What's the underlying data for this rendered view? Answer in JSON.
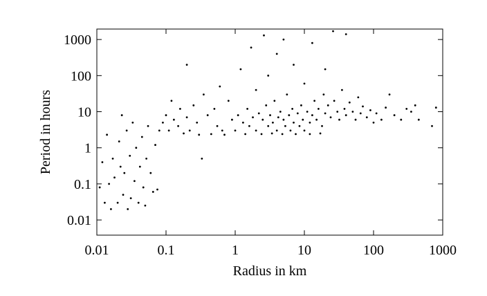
{
  "chart_data": {
    "type": "scatter",
    "xlabel": "Radius in km",
    "ylabel": "Period in hours",
    "log_x": true,
    "log_y": true,
    "color": "#000000",
    "xlim": [
      0.01,
      1000
    ],
    "ylim": [
      0.0038,
      1950
    ],
    "xticks": [
      0.01,
      0.1,
      1,
      10,
      100,
      1000
    ],
    "yticks": [
      0.01,
      0.1,
      1,
      10,
      100,
      1000
    ],
    "x": [
      0.011,
      0.012,
      0.013,
      0.014,
      0.015,
      0.016,
      0.017,
      0.018,
      0.02,
      0.021,
      0.022,
      0.023,
      0.024,
      0.025,
      0.027,
      0.028,
      0.03,
      0.031,
      0.033,
      0.035,
      0.037,
      0.04,
      0.042,
      0.045,
      0.047,
      0.05,
      0.052,
      0.055,
      0.06,
      0.065,
      0.07,
      0.075,
      0.08,
      0.09,
      0.1,
      0.11,
      0.12,
      0.13,
      0.15,
      0.16,
      0.18,
      0.2,
      0.2,
      0.22,
      0.25,
      0.28,
      0.3,
      0.33,
      0.35,
      0.4,
      0.45,
      0.5,
      0.55,
      0.6,
      0.65,
      0.7,
      0.8,
      0.9,
      1,
      1.1,
      1.2,
      1.3,
      1.4,
      1.5,
      1.6,
      1.7,
      1.8,
      2,
      2,
      2.2,
      2.4,
      2.5,
      2.6,
      2.8,
      3,
      3,
      3.2,
      3.4,
      3.5,
      3.7,
      4,
      4,
      4.2,
      4.5,
      4.8,
      5,
      5,
      5.3,
      5.6,
      6,
      6.3,
      6.7,
      7,
      7,
      7.5,
      8,
      8.5,
      9,
      9.5,
      10,
      10,
      11,
      12,
      12,
      13,
      13,
      14,
      15,
      16,
      17,
      18,
      19,
      20,
      20,
      22,
      24,
      26,
      27,
      30,
      32,
      35,
      38,
      40,
      40,
      45,
      50,
      55,
      60,
      65,
      70,
      80,
      90,
      100,
      110,
      130,
      150,
      170,
      200,
      250,
      300,
      350,
      400,
      450,
      700,
      800
    ],
    "y": [
      0.08,
      0.4,
      0.03,
      2.3,
      0.1,
      0.02,
      0.5,
      0.15,
      0.03,
      1.5,
      0.3,
      8,
      0.05,
      0.2,
      3,
      0.02,
      0.6,
      0.04,
      5,
      0.12,
      1,
      0.03,
      0.3,
      2,
      0.08,
      0.025,
      0.5,
      4,
      0.2,
      0.06,
      1.2,
      0.07,
      3,
      5,
      8,
      3,
      20,
      6,
      4,
      12,
      2.5,
      200,
      7,
      3,
      15,
      5,
      2.3,
      0.5,
      30,
      8,
      2.4,
      12,
      4,
      50,
      3,
      2.3,
      20,
      6,
      3,
      8,
      150,
      5,
      2.4,
      12,
      4,
      600,
      7,
      3,
      40,
      9,
      2.4,
      6,
      1300,
      15,
      4,
      100,
      8,
      2.5,
      5,
      20,
      3,
      400,
      7,
      10,
      2.4,
      6,
      1000,
      4,
      30,
      8,
      3,
      12,
      5,
      200,
      2.4,
      9,
      4,
      15,
      6,
      3,
      60,
      10,
      5,
      2.4,
      800,
      8,
      20,
      6,
      12,
      2.5,
      4,
      30,
      9,
      150,
      15,
      7,
      1700,
      20,
      10,
      6,
      40,
      12,
      8,
      1400,
      18,
      10,
      6,
      25,
      9,
      14,
      7,
      11,
      5,
      9,
      6,
      13,
      30,
      8,
      6,
      12,
      10,
      15,
      6,
      4,
      13
    ]
  }
}
